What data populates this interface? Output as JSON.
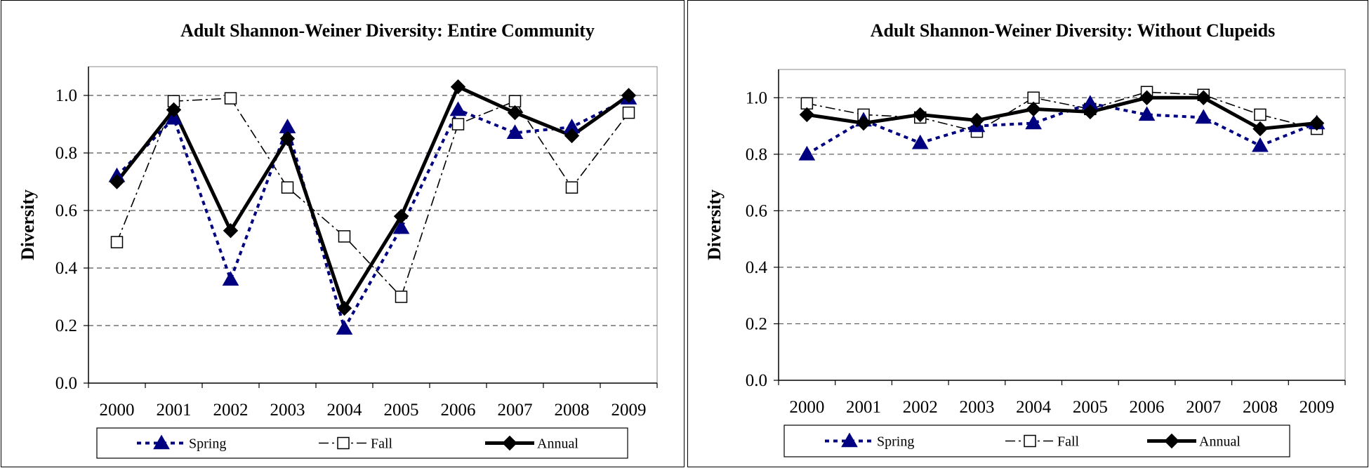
{
  "chart_data": [
    {
      "type": "line",
      "title": "Adult Shannon-Weiner Diversity: Entire Community",
      "xlabel": "",
      "ylabel": "Diversity",
      "ylim": [
        0,
        1.1
      ],
      "yticks": [
        "0.0",
        "0.2",
        "0.4",
        "0.6",
        "0.8",
        "1.0"
      ],
      "categories": [
        "2000",
        "2001",
        "2002",
        "2003",
        "2004",
        "2005",
        "2006",
        "2007",
        "2008",
        "2009"
      ],
      "grid": true,
      "legend_position": "bottom",
      "series": [
        {
          "name": "Spring",
          "values": [
            0.72,
            0.92,
            0.36,
            0.89,
            0.19,
            0.54,
            0.95,
            0.87,
            0.89,
            0.99
          ],
          "color": "#000080",
          "marker": "triangle",
          "dash": "dotted"
        },
        {
          "name": "Fall",
          "values": [
            0.49,
            0.98,
            0.99,
            0.68,
            0.51,
            0.3,
            0.9,
            0.98,
            0.68,
            0.94
          ],
          "color": "#000000",
          "marker": "square",
          "dash": "dashdot"
        },
        {
          "name": "Annual",
          "values": [
            0.7,
            0.95,
            0.53,
            0.85,
            0.26,
            0.58,
            1.03,
            0.94,
            0.86,
            1.0
          ],
          "color": "#000000",
          "marker": "diamond",
          "dash": "solid"
        }
      ]
    },
    {
      "type": "line",
      "title": "Adult Shannon-Weiner Diversity: Without Clupeids",
      "xlabel": "",
      "ylabel": "Diversity",
      "ylim": [
        0,
        1.1
      ],
      "yticks": [
        "0.0",
        "0.2",
        "0.4",
        "0.6",
        "0.8",
        "1.0"
      ],
      "categories": [
        "2000",
        "2001",
        "2002",
        "2003",
        "2004",
        "2005",
        "2006",
        "2007",
        "2008",
        "2009"
      ],
      "grid": true,
      "legend_position": "bottom",
      "series": [
        {
          "name": "Spring",
          "values": [
            0.8,
            0.92,
            0.84,
            0.9,
            0.91,
            0.98,
            0.94,
            0.93,
            0.83,
            0.91
          ],
          "color": "#000080",
          "marker": "triangle",
          "dash": "dotted"
        },
        {
          "name": "Fall",
          "values": [
            0.98,
            0.94,
            0.93,
            0.88,
            1.0,
            0.96,
            1.02,
            1.01,
            0.94,
            0.89
          ],
          "color": "#000000",
          "marker": "square",
          "dash": "dashdot"
        },
        {
          "name": "Annual",
          "values": [
            0.94,
            0.91,
            0.94,
            0.92,
            0.96,
            0.95,
            1.0,
            1.0,
            0.89,
            0.91
          ],
          "color": "#000000",
          "marker": "diamond",
          "dash": "solid"
        }
      ]
    }
  ]
}
